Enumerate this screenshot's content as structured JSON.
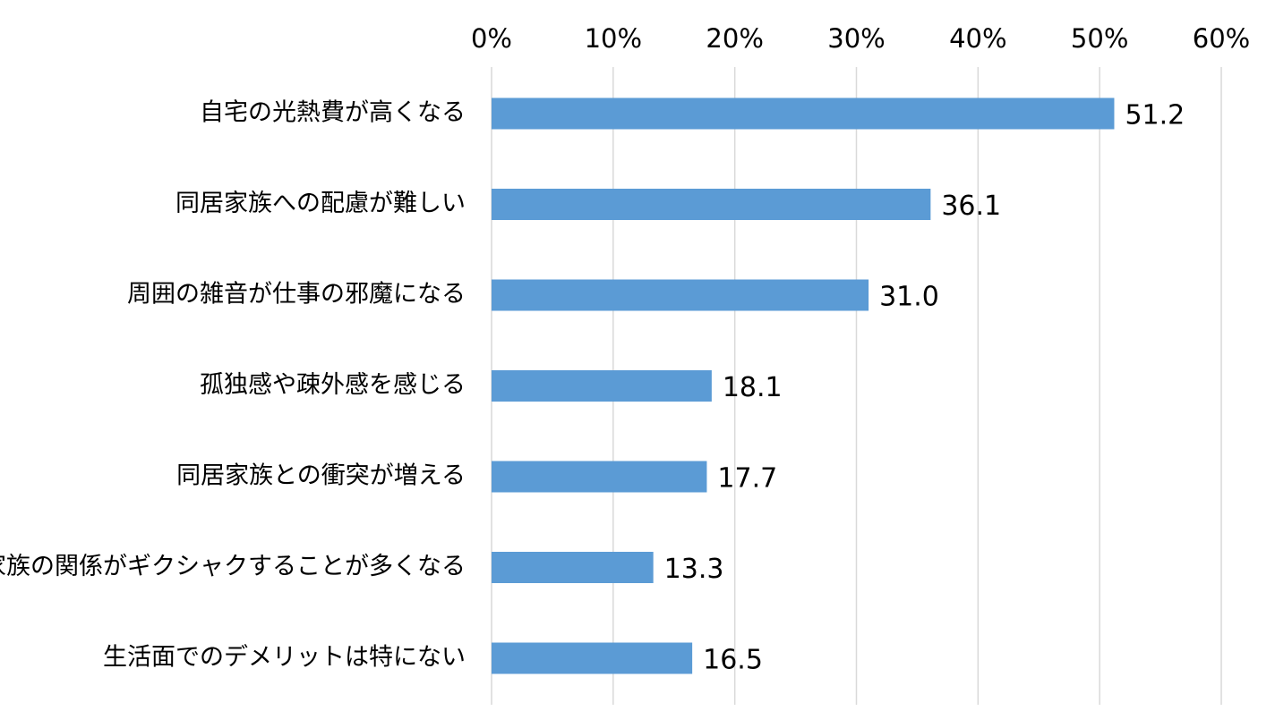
{
  "chart_data": {
    "type": "bar",
    "orientation": "horizontal",
    "title": "",
    "xlabel": "",
    "ylabel": "",
    "xlim": [
      0,
      60
    ],
    "x_ticks": [
      0,
      10,
      20,
      30,
      40,
      50,
      60
    ],
    "x_tick_labels": [
      "0%",
      "10%",
      "20%",
      "30%",
      "40%",
      "50%",
      "60%"
    ],
    "x_axis_position": "top",
    "grid": true,
    "legend": "none",
    "categories": [
      "自宅の光熱費が高くなる",
      "同居家族への配慮が難しい",
      "周囲の雑音が仕事の邪魔になる",
      "孤独感や疎外感を感じる",
      "同居家族との衝突が増える",
      "家族の関係がギクシャクすることが多くなる",
      "生活面でのデメリットは特にない"
    ],
    "values": [
      51.2,
      36.1,
      31.0,
      18.1,
      17.7,
      13.3,
      16.5
    ],
    "data_labels": [
      "51.2",
      "36.1",
      "31.0",
      "18.1",
      "17.7",
      "13.3",
      "16.5"
    ],
    "colors": {
      "bar": "#5b9bd5",
      "grid": "#d9d9d9",
      "text": "#000000"
    }
  }
}
